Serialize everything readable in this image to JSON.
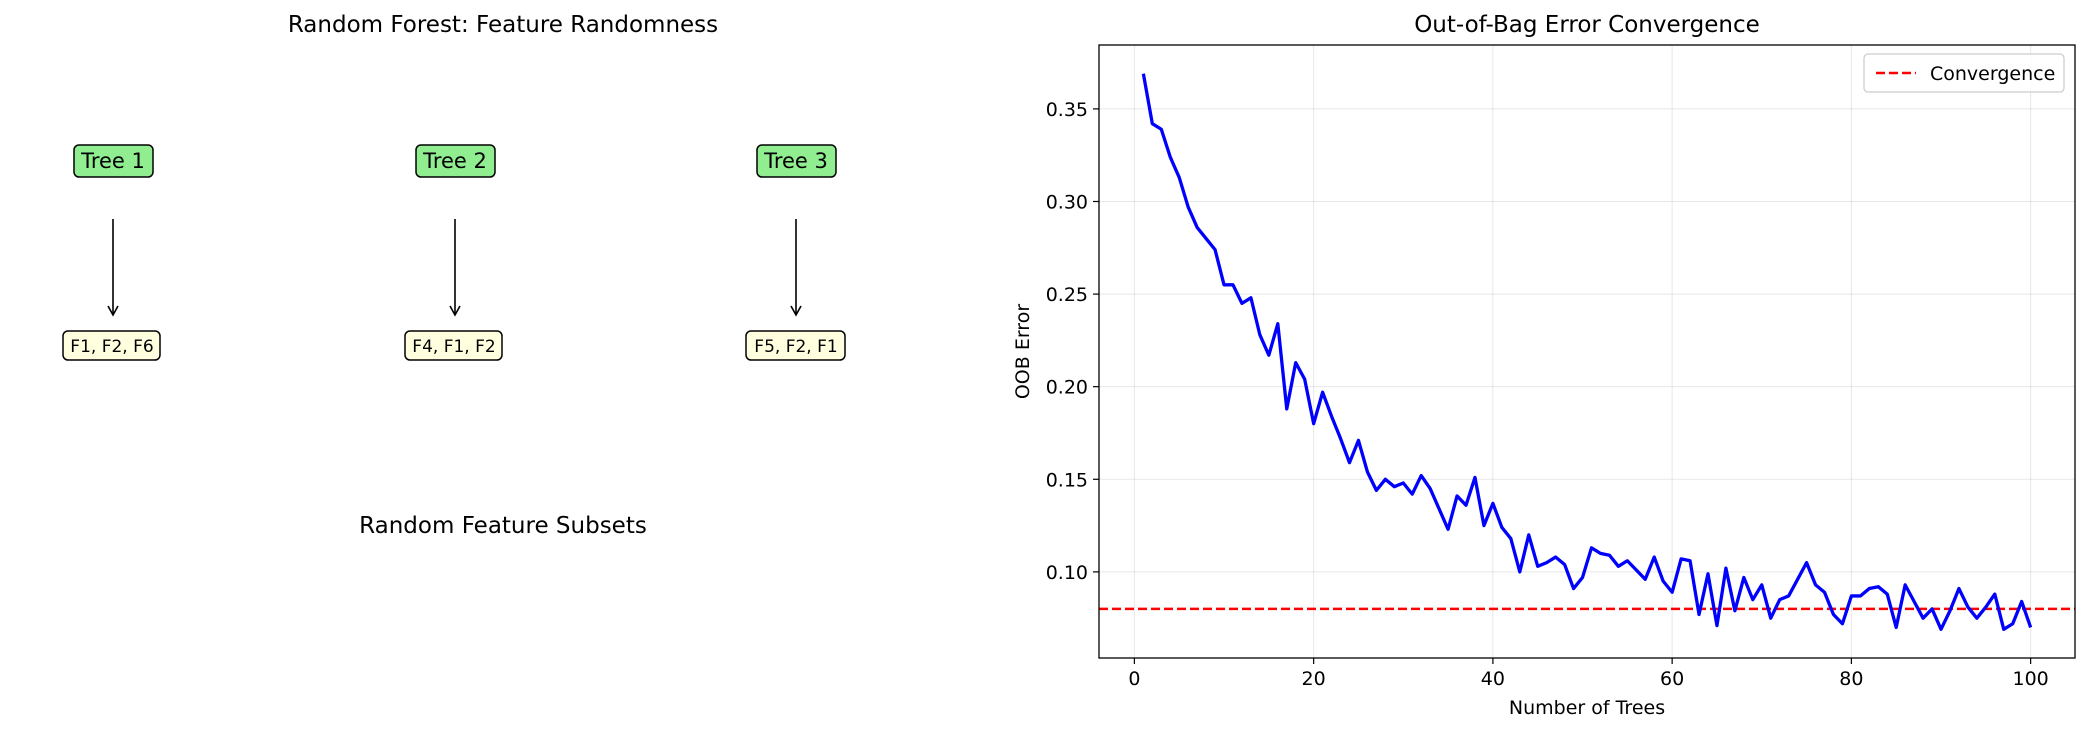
{
  "left_panel": {
    "title": "Random Forest: Feature Randomness",
    "trees": [
      {
        "name": "Tree 1",
        "features": "F1, F2, F6"
      },
      {
        "name": "Tree 2",
        "features": "F4, F1, F2"
      },
      {
        "name": "Tree 3",
        "features": "F5, F2, F1"
      }
    ],
    "caption": "Random Feature Subsets",
    "colors": {
      "tree_box": "#90ee90",
      "subset_box": "#ffffe0"
    }
  },
  "chart_data": {
    "type": "line",
    "title": "Out-of-Bag Error Convergence",
    "xlabel": "Number of Trees",
    "ylabel": "OOB Error",
    "xlim": [
      -3.95,
      104.95
    ],
    "ylim": [
      0.0535,
      0.3845
    ],
    "xticks": [
      0,
      20,
      40,
      60,
      80,
      100
    ],
    "yticks": [
      0.1,
      0.15,
      0.2,
      0.25,
      0.3,
      0.35
    ],
    "ytick_labels": [
      "0.10",
      "0.15",
      "0.20",
      "0.25",
      "0.30",
      "0.35"
    ],
    "grid": true,
    "legend": {
      "position": "top-right",
      "entries": [
        "Convergence"
      ]
    },
    "hline": {
      "y": 0.08,
      "color": "#ff0000",
      "style": "dashed",
      "name": "Convergence"
    },
    "series": [
      {
        "color": "#0000ff",
        "x": [
          1,
          2,
          3,
          4,
          5,
          6,
          7,
          8,
          9,
          10,
          11,
          12,
          13,
          14,
          15,
          16,
          17,
          18,
          19,
          20,
          21,
          22,
          23,
          24,
          25,
          26,
          27,
          28,
          29,
          30,
          31,
          32,
          33,
          34,
          35,
          36,
          37,
          38,
          39,
          40,
          41,
          42,
          43,
          44,
          45,
          46,
          47,
          48,
          49,
          50,
          51,
          52,
          53,
          54,
          55,
          56,
          57,
          58,
          59,
          60,
          61,
          62,
          63,
          64,
          65,
          66,
          67,
          68,
          69,
          70,
          71,
          72,
          73,
          74,
          75,
          76,
          77,
          78,
          79,
          80,
          81,
          82,
          83,
          84,
          85,
          86,
          87,
          88,
          89,
          90,
          91,
          92,
          93,
          94,
          95,
          96,
          97,
          98,
          99,
          100
        ],
        "values": [
          0.369,
          0.342,
          0.339,
          0.324,
          0.313,
          0.297,
          0.286,
          0.28,
          0.274,
          0.255,
          0.255,
          0.245,
          0.248,
          0.228,
          0.217,
          0.234,
          0.188,
          0.213,
          0.204,
          0.18,
          0.197,
          0.184,
          0.172,
          0.159,
          0.171,
          0.154,
          0.144,
          0.15,
          0.146,
          0.148,
          0.142,
          0.152,
          0.145,
          0.134,
          0.123,
          0.141,
          0.136,
          0.151,
          0.125,
          0.137,
          0.124,
          0.118,
          0.1,
          0.12,
          0.103,
          0.105,
          0.108,
          0.104,
          0.091,
          0.097,
          0.113,
          0.11,
          0.109,
          0.103,
          0.106,
          0.101,
          0.096,
          0.108,
          0.095,
          0.089,
          0.107,
          0.106,
          0.077,
          0.099,
          0.071,
          0.102,
          0.079,
          0.097,
          0.085,
          0.093,
          0.075,
          0.085,
          0.087,
          0.096,
          0.105,
          0.093,
          0.089,
          0.077,
          0.072,
          0.087,
          0.087,
          0.091,
          0.092,
          0.088,
          0.07,
          0.093,
          0.084,
          0.075,
          0.08,
          0.069,
          0.079,
          0.091,
          0.081,
          0.075,
          0.081,
          0.088,
          0.069,
          0.072,
          0.084,
          0.07
        ]
      }
    ]
  }
}
